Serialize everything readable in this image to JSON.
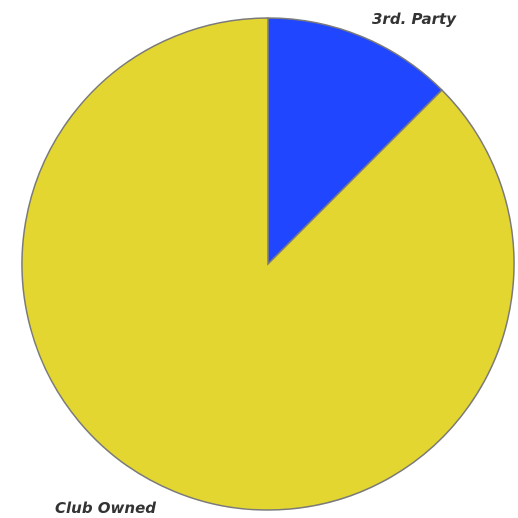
{
  "chart_data": {
    "type": "pie",
    "title": "",
    "start_angle_deg": 0,
    "direction": "clockwise",
    "slices": [
      {
        "label": "3rd. Party",
        "value": 12.5,
        "color": "#2146FF"
      },
      {
        "label": "Club Owned",
        "value": 87.5,
        "color": "#E3D630"
      }
    ],
    "stroke_color": "#7A7A7A"
  }
}
